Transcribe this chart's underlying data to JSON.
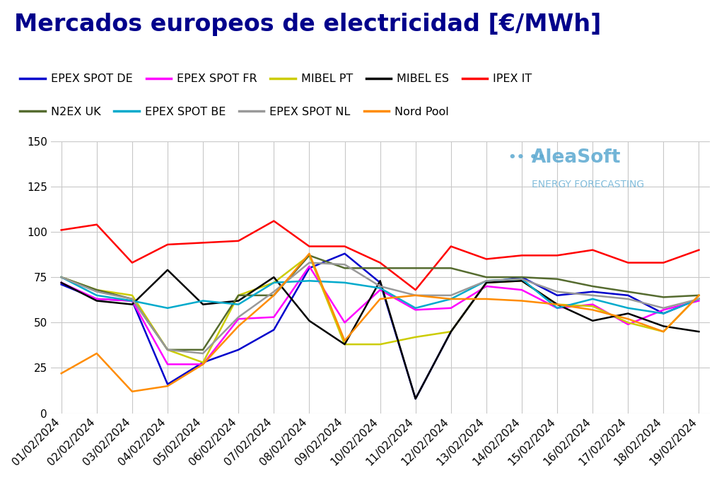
{
  "title": "Mercados europeos de electricidad [€/MWh]",
  "dates": [
    "01/02/2024",
    "02/02/2024",
    "03/02/2024",
    "04/02/2024",
    "05/02/2024",
    "06/02/2024",
    "07/02/2024",
    "08/02/2024",
    "09/02/2024",
    "10/02/2024",
    "11/02/2024",
    "12/02/2024",
    "13/02/2024",
    "14/02/2024",
    "15/02/2024",
    "16/02/2024",
    "17/02/2024",
    "18/02/2024",
    "19/02/2024"
  ],
  "series": [
    {
      "name": "EPEX SPOT DE",
      "color": "#0000cc",
      "values": [
        71,
        63,
        62,
        16,
        28,
        35,
        46,
        80,
        88,
        72,
        8,
        45,
        72,
        75,
        65,
        67,
        65,
        55,
        63
      ]
    },
    {
      "name": "EPEX SPOT FR",
      "color": "#ff00ff",
      "values": [
        72,
        63,
        62,
        27,
        27,
        52,
        53,
        81,
        50,
        68,
        57,
        58,
        70,
        68,
        58,
        60,
        49,
        57,
        62
      ]
    },
    {
      "name": "MIBEL PT",
      "color": "#cccc00",
      "values": [
        75,
        68,
        65,
        35,
        28,
        65,
        72,
        87,
        38,
        38,
        42,
        45,
        72,
        73,
        60,
        59,
        50,
        45,
        65
      ]
    },
    {
      "name": "MIBEL ES",
      "color": "#000000",
      "values": [
        72,
        62,
        60,
        79,
        60,
        62,
        75,
        51,
        38,
        73,
        8,
        45,
        72,
        73,
        60,
        51,
        55,
        48,
        45
      ]
    },
    {
      "name": "IPEX IT",
      "color": "#ff0000",
      "values": [
        101,
        104,
        83,
        93,
        94,
        95,
        106,
        92,
        92,
        83,
        68,
        92,
        85,
        87,
        87,
        90,
        83,
        83,
        90
      ]
    },
    {
      "name": "N2EX UK",
      "color": "#556b2f",
      "values": [
        75,
        68,
        63,
        35,
        35,
        65,
        65,
        87,
        80,
        80,
        80,
        80,
        75,
        75,
        74,
        70,
        67,
        64,
        65
      ]
    },
    {
      "name": "EPEX SPOT BE",
      "color": "#00aacc",
      "values": [
        75,
        65,
        62,
        58,
        62,
        60,
        72,
        73,
        72,
        69,
        58,
        63,
        73,
        74,
        58,
        63,
        58,
        55,
        63
      ]
    },
    {
      "name": "EPEX SPOT NL",
      "color": "#999999",
      "values": [
        75,
        67,
        63,
        35,
        33,
        53,
        67,
        83,
        82,
        70,
        65,
        65,
        73,
        74,
        67,
        65,
        63,
        58,
        63
      ]
    },
    {
      "name": "Nord Pool",
      "color": "#ff8c00",
      "values": [
        22,
        33,
        12,
        15,
        27,
        48,
        65,
        88,
        40,
        63,
        65,
        63,
        63,
        62,
        60,
        57,
        52,
        45,
        65
      ]
    }
  ],
  "ylim": [
    0,
    150
  ],
  "yticks": [
    0,
    25,
    50,
    75,
    100,
    125,
    150
  ],
  "background_color": "#ffffff",
  "grid_color": "#c8c8c8",
  "title_color": "#00008b",
  "title_fontsize": 24,
  "legend_fontsize": 11.5,
  "tick_fontsize": 11,
  "watermark_text": "AleaSoft",
  "watermark_subtext": "ENERGY FORECASTING",
  "watermark_color": "#5ba8d0",
  "watermark_dot_color": "#5ba8d0"
}
